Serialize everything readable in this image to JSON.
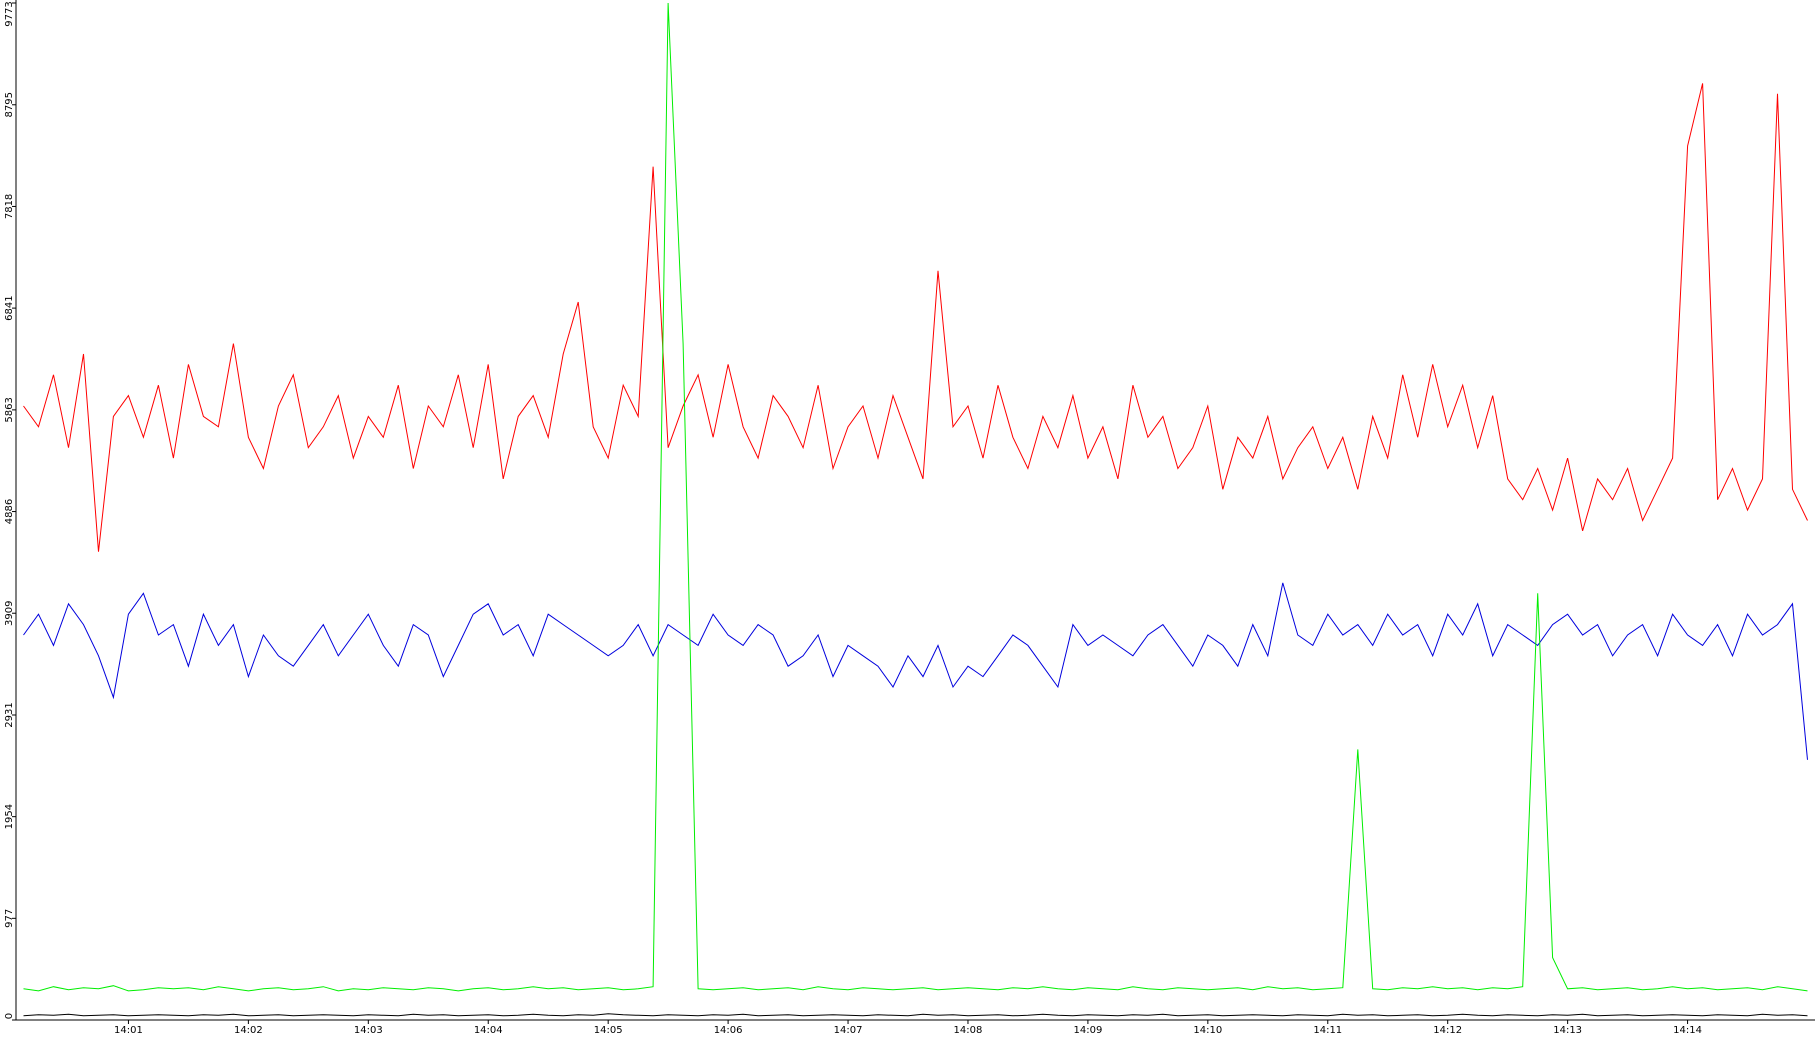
{
  "chart_data": {
    "type": "line",
    "categories": [
      null,
      null,
      null,
      null,
      null,
      null,
      null,
      "14:01",
      null,
      null,
      null,
      null,
      null,
      null,
      null,
      "14:02",
      null,
      null,
      null,
      null,
      null,
      null,
      null,
      "14:03",
      null,
      null,
      null,
      null,
      null,
      null,
      null,
      "14:04",
      null,
      null,
      null,
      null,
      null,
      null,
      null,
      "14:05",
      null,
      null,
      null,
      null,
      null,
      null,
      null,
      "14:06",
      null,
      null,
      null,
      null,
      null,
      null,
      null,
      "14:07",
      null,
      null,
      null,
      null,
      null,
      null,
      null,
      "14:08",
      null,
      null,
      null,
      null,
      null,
      null,
      null,
      "14:09",
      null,
      null,
      null,
      null,
      null,
      null,
      null,
      "14:10",
      null,
      null,
      null,
      null,
      null,
      null,
      null,
      "14:11",
      null,
      null,
      null,
      null,
      null,
      null,
      null,
      "14:12",
      null,
      null,
      null,
      null,
      null,
      null,
      null,
      "14:13",
      null,
      null,
      null,
      null,
      null,
      null,
      null,
      "14:14",
      null,
      null,
      null,
      null,
      null,
      null,
      null,
      null
    ],
    "series": [
      {
        "color": "#ff0000",
        "values": [
          5900,
          5700,
          6200,
          5500,
          6400,
          4500,
          5800,
          6000,
          5600,
          6100,
          5400,
          6300,
          5800,
          5700,
          6500,
          5600,
          5300,
          5900,
          6200,
          5500,
          5700,
          6000,
          5400,
          5800,
          5600,
          6100,
          5300,
          5900,
          5700,
          6200,
          5500,
          6300,
          5200,
          5800,
          6000,
          5600,
          6400,
          6900,
          5700,
          5400,
          6100,
          5800,
          8200,
          5500,
          5900,
          6200,
          5600,
          6300,
          5700,
          5400,
          6000,
          5800,
          5500,
          6100,
          5300,
          5700,
          5900,
          5400,
          6000,
          5600,
          5200,
          7200,
          5700,
          5900,
          5400,
          6100,
          5600,
          5300,
          5800,
          5500,
          6000,
          5400,
          5700,
          5200,
          6100,
          5600,
          5800,
          5300,
          5500,
          5900,
          5100,
          5600,
          5400,
          5800,
          5200,
          5500,
          5700,
          5300,
          5600,
          5100,
          5800,
          5400,
          6200,
          5600,
          6300,
          5700,
          6100,
          5500,
          6000,
          5200,
          5000,
          5300,
          4900,
          5400,
          4700,
          5200,
          5000,
          5300,
          4800,
          5100,
          5400,
          8400,
          9000,
          5000,
          5300,
          4900,
          5200,
          8900,
          5100,
          4800
        ]
      },
      {
        "color": "#0000dd",
        "values": [
          3700,
          3900,
          3600,
          4000,
          3800,
          3500,
          3100,
          3900,
          4100,
          3700,
          3800,
          3400,
          3900,
          3600,
          3800,
          3300,
          3700,
          3500,
          3400,
          3600,
          3800,
          3500,
          3700,
          3900,
          3600,
          3400,
          3800,
          3700,
          3300,
          3600,
          3900,
          4000,
          3700,
          3800,
          3500,
          3900,
          3800,
          3700,
          3600,
          3500,
          3600,
          3800,
          3500,
          3800,
          3700,
          3600,
          3900,
          3700,
          3600,
          3800,
          3700,
          3400,
          3500,
          3700,
          3300,
          3600,
          3500,
          3400,
          3200,
          3500,
          3300,
          3600,
          3200,
          3400,
          3300,
          3500,
          3700,
          3600,
          3400,
          3200,
          3800,
          3600,
          3700,
          3600,
          3500,
          3700,
          3800,
          3600,
          3400,
          3700,
          3600,
          3400,
          3800,
          3500,
          4200,
          3700,
          3600,
          3900,
          3700,
          3800,
          3600,
          3900,
          3700,
          3800,
          3500,
          3900,
          3700,
          4000,
          3500,
          3800,
          3700,
          3600,
          3800,
          3900,
          3700,
          3800,
          3500,
          3700,
          3800,
          3500,
          3900,
          3700,
          3600,
          3800,
          3500,
          3900,
          3700,
          3800,
          4000,
          2500
        ]
      },
      {
        "color": "#00ee00",
        "values": [
          300,
          280,
          320,
          290,
          310,
          300,
          330,
          280,
          290,
          310,
          300,
          310,
          290,
          320,
          300,
          280,
          300,
          310,
          290,
          300,
          320,
          280,
          300,
          290,
          310,
          300,
          290,
          310,
          300,
          280,
          300,
          310,
          290,
          300,
          320,
          300,
          310,
          290,
          300,
          310,
          290,
          300,
          320,
          9773,
          6500,
          300,
          290,
          300,
          310,
          290,
          300,
          310,
          290,
          320,
          300,
          290,
          310,
          300,
          290,
          300,
          310,
          290,
          300,
          310,
          300,
          290,
          310,
          300,
          320,
          300,
          290,
          310,
          300,
          290,
          320,
          300,
          290,
          310,
          300,
          290,
          300,
          310,
          290,
          320,
          300,
          310,
          290,
          300,
          310,
          2600,
          300,
          290,
          310,
          300,
          320,
          300,
          310,
          290,
          310,
          300,
          320,
          4100,
          600,
          300,
          310,
          290,
          300,
          310,
          290,
          300,
          320,
          300,
          310,
          290,
          300,
          310,
          290,
          320,
          300,
          280
        ]
      },
      {
        "color": "#000000",
        "values": [
          40,
          50,
          45,
          55,
          40,
          45,
          50,
          40,
          45,
          50,
          45,
          40,
          50,
          45,
          55,
          40,
          45,
          50,
          40,
          45,
          50,
          45,
          40,
          50,
          45,
          40,
          55,
          45,
          50,
          40,
          45,
          50,
          40,
          45,
          55,
          45,
          40,
          50,
          45,
          60,
          50,
          45,
          40,
          50,
          45,
          40,
          50,
          45,
          55,
          40,
          45,
          50,
          40,
          45,
          50,
          45,
          40,
          50,
          45,
          40,
          55,
          45,
          50,
          40,
          45,
          50,
          40,
          45,
          55,
          45,
          40,
          50,
          45,
          40,
          50,
          45,
          55,
          40,
          45,
          50,
          40,
          45,
          50,
          45,
          40,
          50,
          45,
          40,
          55,
          45,
          50,
          40,
          45,
          50,
          40,
          45,
          55,
          45,
          40,
          50,
          45,
          40,
          50,
          45,
          55,
          40,
          45,
          50,
          40,
          45,
          50,
          45,
          40,
          50,
          45,
          40,
          55,
          45,
          50,
          40
        ]
      }
    ],
    "ylim": [
      0,
      9773
    ],
    "yticks": [
      0,
      977,
      1954,
      2931,
      3909,
      4886,
      5863,
      6841,
      7818,
      8795,
      9773
    ]
  }
}
